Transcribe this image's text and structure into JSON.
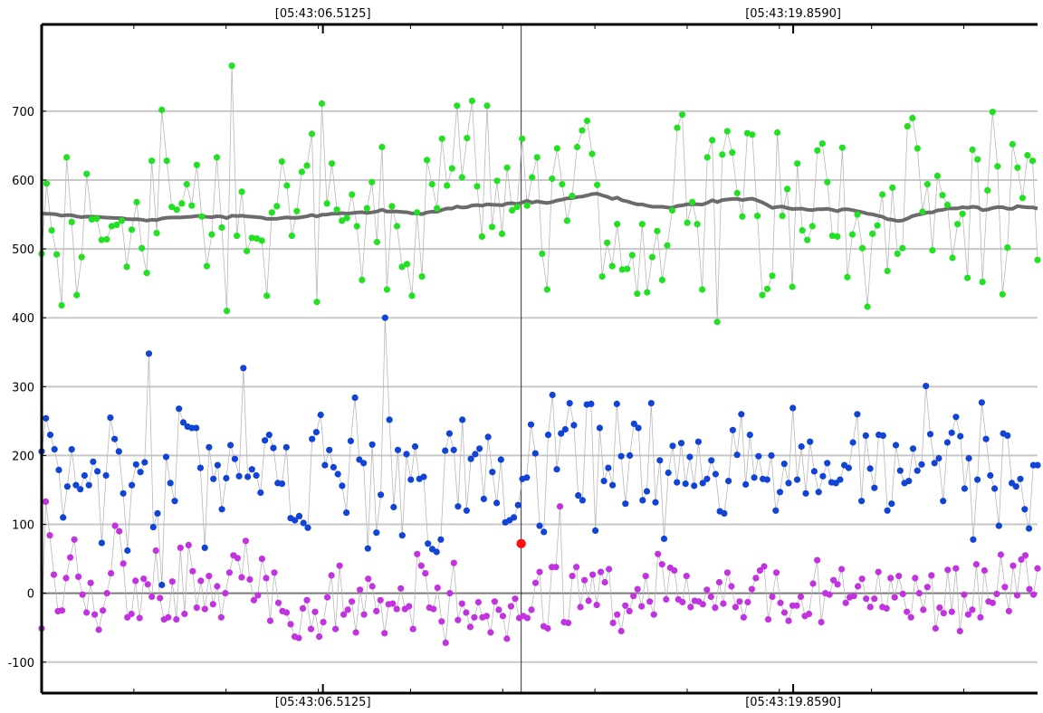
{
  "chart_data": {
    "type": "scatter",
    "title": "",
    "xlabel": "",
    "ylabel": "",
    "ylim": [
      -145,
      826
    ],
    "xlim": [
      0,
      216
    ],
    "yticks": [
      -100,
      0,
      100,
      200,
      300,
      400,
      500,
      600,
      700
    ],
    "grid": true,
    "time_marks": [
      {
        "label": "[05:43:06.5125]",
        "x": 61
      },
      {
        "label": "[05:43:19.8590]",
        "x": 163
      }
    ],
    "cursor_x": 104,
    "cursor_point": {
      "x": 104,
      "y": 72
    },
    "colors": {
      "green": "#22e022",
      "blue": "#1144d6",
      "purple": "#c233e0",
      "trend": "#6b6b6b",
      "cursor_point": "#ff1010"
    },
    "series": [
      {
        "color_key": "green",
        "values": [
          493,
          595,
          527,
          492,
          418,
          633,
          539,
          433,
          488,
          609,
          543,
          544,
          513,
          514,
          533,
          535,
          541,
          474,
          528,
          568,
          501,
          465,
          628,
          523,
          702,
          628,
          561,
          557,
          566,
          594,
          563,
          622,
          547,
          475,
          521,
          633,
          531,
          410,
          766,
          519,
          583,
          497,
          516,
          515,
          512,
          432,
          553,
          562,
          627,
          592,
          519,
          555,
          612,
          621,
          667,
          423,
          711,
          566,
          624,
          557,
          541,
          545,
          579,
          533,
          455,
          559,
          597,
          510,
          648,
          441,
          562,
          533,
          474,
          478,
          432,
          553,
          460,
          629,
          594,
          559,
          660,
          592,
          617,
          708,
          604,
          661,
          715,
          591,
          518,
          708,
          532,
          599,
          522,
          618,
          556,
          561,
          660,
          563,
          604,
          633,
          493,
          441,
          602,
          646,
          594,
          541,
          577,
          648,
          672,
          686,
          638,
          593,
          460,
          509,
          475,
          536,
          470,
          471,
          491,
          435,
          536,
          437,
          488,
          526,
          455,
          505,
          556,
          676,
          695,
          538,
          568,
          536,
          441,
          633,
          658,
          394,
          637,
          671,
          640,
          581,
          547,
          668,
          666,
          548,
          433,
          442,
          461,
          669,
          548,
          587,
          445,
          624,
          527,
          513,
          533,
          643,
          653,
          597,
          519,
          518,
          647,
          459,
          521,
          550,
          501,
          416,
          522,
          534,
          579,
          468,
          589,
          493,
          501,
          678,
          690,
          646,
          554,
          594,
          498,
          606,
          578,
          564,
          487,
          536,
          551,
          458,
          644,
          630,
          452,
          585,
          699,
          620,
          434,
          502,
          652,
          618,
          574,
          636,
          628,
          484
        ]
      },
      {
        "color_key": "blue",
        "values": [
          206,
          254,
          230,
          209,
          179,
          110,
          155,
          209,
          157,
          151,
          171,
          157,
          191,
          177,
          73,
          171,
          255,
          224,
          206,
          145,
          62,
          157,
          187,
          176,
          190,
          348,
          96,
          116,
          12,
          198,
          160,
          134,
          268,
          248,
          242,
          240,
          240,
          182,
          66,
          212,
          166,
          186,
          122,
          167,
          215,
          195,
          170,
          327,
          169,
          180,
          171,
          146,
          222,
          230,
          211,
          160,
          159,
          212,
          109,
          106,
          112,
          102,
          95,
          224,
          234,
          259,
          186,
          208,
          183,
          173,
          156,
          117,
          221,
          284,
          194,
          189,
          65,
          216,
          88,
          143,
          400,
          252,
          125,
          208,
          84,
          202,
          165,
          213,
          166,
          169,
          72,
          64,
          60,
          78,
          207,
          232,
          208,
          126,
          252,
          120,
          195,
          202,
          210,
          137,
          227,
          176,
          131,
          194,
          103,
          106,
          110,
          128,
          166,
          168,
          245,
          203,
          98,
          89,
          230,
          288,
          180,
          232,
          238,
          276,
          244,
          142,
          135,
          274,
          275,
          91,
          240,
          163,
          182,
          157,
          275,
          199,
          130,
          200,
          246,
          240,
          135,
          148,
          276,
          132,
          193,
          79,
          175,
          214,
          161,
          218,
          159,
          198,
          156,
          220,
          160,
          166,
          193,
          173,
          119,
          116,
          163,
          237,
          201,
          260,
          158,
          230,
          168,
          199,
          166,
          165,
          200,
          120,
          147,
          188,
          160,
          269,
          165,
          213,
          145,
          220,
          177,
          147,
          170,
          189,
          161,
          160,
          165,
          186,
          182,
          219,
          260,
          134,
          229,
          181,
          153,
          230,
          229,
          120,
          130,
          215,
          178,
          160,
          163,
          210,
          178,
          187,
          301,
          231,
          189,
          196,
          134,
          219,
          233,
          256,
          228,
          152,
          196,
          78,
          165,
          277,
          224,
          171,
          152,
          98,
          232,
          229,
          160,
          155,
          166,
          122,
          94,
          186,
          186
        ]
      },
      {
        "color_key": "purple",
        "values": [
          -51,
          133,
          84,
          27,
          -26,
          -25,
          22,
          52,
          78,
          24,
          -2,
          -28,
          15,
          -31,
          -53,
          -25,
          0,
          29,
          98,
          90,
          43,
          -35,
          -30,
          18,
          -36,
          21,
          13,
          -5,
          62,
          -7,
          -38,
          -35,
          17,
          -38,
          66,
          -30,
          70,
          32,
          -21,
          18,
          -23,
          25,
          -16,
          10,
          -35,
          0,
          30,
          55,
          51,
          23,
          76,
          20,
          -10,
          -3,
          50,
          22,
          -40,
          30,
          -14,
          -26,
          -28,
          -45,
          -63,
          -65,
          -22,
          -10,
          -52,
          -27,
          -63,
          -42,
          -6,
          26,
          -52,
          40,
          -31,
          -24,
          -12,
          -57,
          5,
          -31,
          21,
          10,
          -26,
          -10,
          -58,
          -16,
          -15,
          -23,
          7,
          -23,
          -19,
          -52,
          57,
          40,
          29,
          -21,
          -23,
          8,
          -41,
          -72,
          0,
          44,
          -39,
          -15,
          -28,
          -49,
          -35,
          -13,
          -35,
          -33,
          -57,
          -12,
          -24,
          -33,
          -66,
          -19,
          -8,
          -36,
          -33,
          -36,
          -24,
          15,
          31,
          -48,
          -51,
          38,
          38,
          126,
          -42,
          -43,
          25,
          38,
          -20,
          19,
          -11,
          27,
          -17,
          31,
          16,
          35,
          -43,
          -31,
          -55,
          -18,
          -26,
          -4,
          6,
          -19,
          25,
          -12,
          -31,
          57,
          42,
          -9,
          37,
          33,
          -9,
          -13,
          25,
          -20,
          -11,
          -12,
          -16,
          5,
          -5,
          -21,
          16,
          -15,
          30,
          10,
          -20,
          -12,
          -35,
          -13,
          6,
          22,
          33,
          39,
          -38,
          -5,
          30,
          -14,
          -28,
          -40,
          -18,
          -18,
          -5,
          -33,
          -30,
          14,
          48,
          -42,
          0,
          -2,
          19,
          13,
          35,
          -14,
          -6,
          -4,
          10,
          21,
          -8,
          -20,
          -8,
          31,
          -20,
          -22,
          22,
          -6,
          25,
          -1,
          -27,
          -35,
          22,
          0,
          -24,
          9,
          26,
          -51,
          -21,
          -29,
          34,
          -27,
          36,
          -55,
          -2,
          -31,
          -24,
          42,
          -35,
          33,
          -12,
          -14,
          -1,
          56,
          9,
          -26,
          40,
          -3,
          49,
          55,
          6,
          -2,
          36
        ]
      }
    ]
  }
}
